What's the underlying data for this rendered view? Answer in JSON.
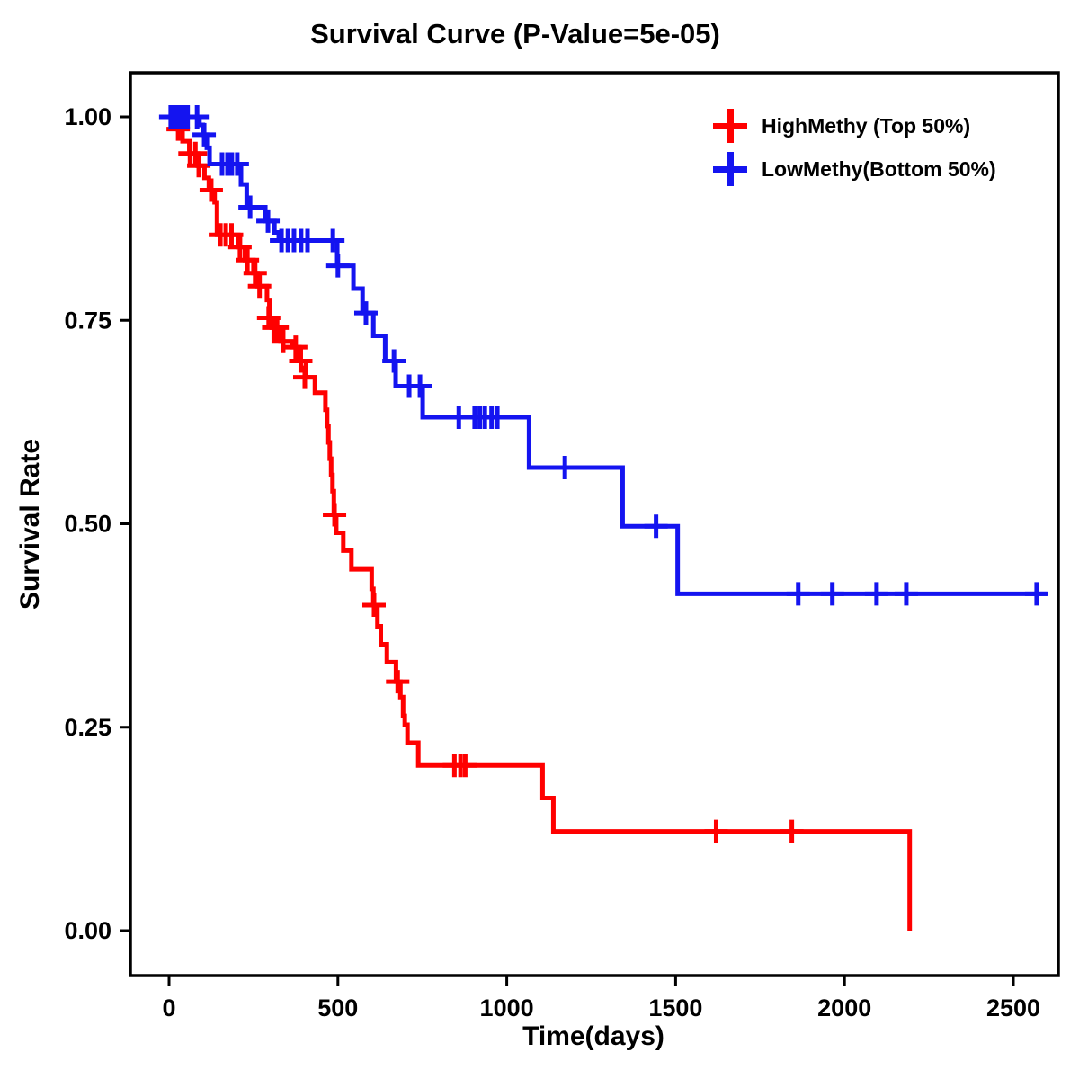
{
  "title": "Survival Curve (P-Value=5e-05)",
  "p_value": "5e-05",
  "axes": {
    "x_label": "Time(days)",
    "y_label": "Survival Rate",
    "x_ticks": [
      {
        "label": "0",
        "value": 0
      },
      {
        "label": "500",
        "value": 500
      },
      {
        "label": "1000",
        "value": 1000
      },
      {
        "label": "1500",
        "value": 1500
      },
      {
        "label": "2000",
        "value": 2000
      },
      {
        "label": "2500",
        "value": 2500
      }
    ],
    "y_ticks": [
      {
        "label": "0.00",
        "value": 0.0
      },
      {
        "label": "0.25",
        "value": 0.25
      },
      {
        "label": "0.50",
        "value": 0.5
      },
      {
        "label": "0.75",
        "value": 0.75
      },
      {
        "label": "1.00",
        "value": 1.0
      }
    ]
  },
  "chart_data": {
    "type": "line",
    "subtype": "kaplan-meier-step-curve",
    "title": "Survival Curve (P-Value=5e-05)",
    "xlabel": "Time(days)",
    "ylabel": "Survival Rate",
    "xlim": [
      0,
      2500
    ],
    "ylim": [
      0,
      1
    ],
    "grid": false,
    "legend_position": "top-right",
    "series": [
      {
        "name": "HighMethy (Top 50%)",
        "color": "#ff0000",
        "steps": [
          [
            0,
            1.0
          ],
          [
            25,
            0.985
          ],
          [
            40,
            0.97
          ],
          [
            60,
            0.955
          ],
          [
            85,
            0.94
          ],
          [
            105,
            0.925
          ],
          [
            118,
            0.91
          ],
          [
            135,
            0.895
          ],
          [
            142,
            0.855
          ],
          [
            205,
            0.84
          ],
          [
            225,
            0.824
          ],
          [
            250,
            0.808
          ],
          [
            262,
            0.792
          ],
          [
            290,
            0.775
          ],
          [
            297,
            0.753
          ],
          [
            304,
            0.741
          ],
          [
            330,
            0.724
          ],
          [
            365,
            0.717
          ],
          [
            386,
            0.7
          ],
          [
            405,
            0.68
          ],
          [
            432,
            0.661
          ],
          [
            463,
            0.64
          ],
          [
            468,
            0.62
          ],
          [
            472,
            0.6
          ],
          [
            476,
            0.58
          ],
          [
            480,
            0.56
          ],
          [
            484,
            0.54
          ],
          [
            488,
            0.511
          ],
          [
            495,
            0.489
          ],
          [
            516,
            0.467
          ],
          [
            540,
            0.444
          ],
          [
            600,
            0.42
          ],
          [
            605,
            0.4
          ],
          [
            617,
            0.374
          ],
          [
            627,
            0.352
          ],
          [
            645,
            0.33
          ],
          [
            672,
            0.306
          ],
          [
            685,
            0.287
          ],
          [
            693,
            0.264
          ],
          [
            698,
            0.253
          ],
          [
            706,
            0.231
          ],
          [
            738,
            0.203
          ],
          [
            1106,
            0.163
          ],
          [
            1138,
            0.122
          ],
          [
            2193,
            0.0
          ]
        ],
        "censors": [
          [
            27,
            0.985
          ],
          [
            62,
            0.955
          ],
          [
            78,
            0.955
          ],
          [
            88,
            0.94
          ],
          [
            125,
            0.91
          ],
          [
            152,
            0.855
          ],
          [
            168,
            0.855
          ],
          [
            185,
            0.855
          ],
          [
            210,
            0.84
          ],
          [
            232,
            0.824
          ],
          [
            255,
            0.808
          ],
          [
            268,
            0.792
          ],
          [
            295,
            0.753
          ],
          [
            310,
            0.741
          ],
          [
            320,
            0.741
          ],
          [
            338,
            0.724
          ],
          [
            375,
            0.717
          ],
          [
            390,
            0.7
          ],
          [
            402,
            0.68
          ],
          [
            490,
            0.511
          ],
          [
            607,
            0.4
          ],
          [
            677,
            0.306
          ],
          [
            845,
            0.203
          ],
          [
            863,
            0.203
          ],
          [
            877,
            0.203
          ],
          [
            1620,
            0.122
          ],
          [
            1844,
            0.122
          ]
        ]
      },
      {
        "name": "LowMethy(Bottom 50%)",
        "color": "#1414f0",
        "steps": [
          [
            0,
            1.0
          ],
          [
            90,
            0.99
          ],
          [
            100,
            0.978
          ],
          [
            112,
            0.962
          ],
          [
            120,
            0.942
          ],
          [
            213,
            0.917
          ],
          [
            230,
            0.889
          ],
          [
            285,
            0.872
          ],
          [
            312,
            0.858
          ],
          [
            325,
            0.848
          ],
          [
            498,
            0.817
          ],
          [
            546,
            0.789
          ],
          [
            573,
            0.759
          ],
          [
            605,
            0.731
          ],
          [
            640,
            0.7
          ],
          [
            671,
            0.669
          ],
          [
            751,
            0.631
          ],
          [
            1066,
            0.569
          ],
          [
            1343,
            0.497
          ],
          [
            1506,
            0.414
          ],
          [
            2600,
            0.414
          ]
        ],
        "censors": [
          [
            5,
            1.0
          ],
          [
            13,
            1.0
          ],
          [
            21,
            1.0
          ],
          [
            30,
            1.0
          ],
          [
            38,
            1.0
          ],
          [
            47,
            1.0
          ],
          [
            55,
            1.0
          ],
          [
            83,
            1.0
          ],
          [
            104,
            0.978
          ],
          [
            157,
            0.942
          ],
          [
            173,
            0.942
          ],
          [
            186,
            0.942
          ],
          [
            202,
            0.942
          ],
          [
            240,
            0.889
          ],
          [
            293,
            0.872
          ],
          [
            333,
            0.848
          ],
          [
            352,
            0.848
          ],
          [
            370,
            0.848
          ],
          [
            391,
            0.848
          ],
          [
            410,
            0.848
          ],
          [
            485,
            0.848
          ],
          [
            500,
            0.817
          ],
          [
            583,
            0.759
          ],
          [
            666,
            0.7
          ],
          [
            711,
            0.669
          ],
          [
            743,
            0.669
          ],
          [
            858,
            0.631
          ],
          [
            905,
            0.631
          ],
          [
            920,
            0.631
          ],
          [
            935,
            0.631
          ],
          [
            955,
            0.631
          ],
          [
            972,
            0.631
          ],
          [
            1172,
            0.569
          ],
          [
            1442,
            0.497
          ],
          [
            1863,
            0.414
          ],
          [
            1964,
            0.414
          ],
          [
            2095,
            0.414
          ],
          [
            2183,
            0.414
          ],
          [
            2569,
            0.414
          ]
        ]
      }
    ]
  }
}
